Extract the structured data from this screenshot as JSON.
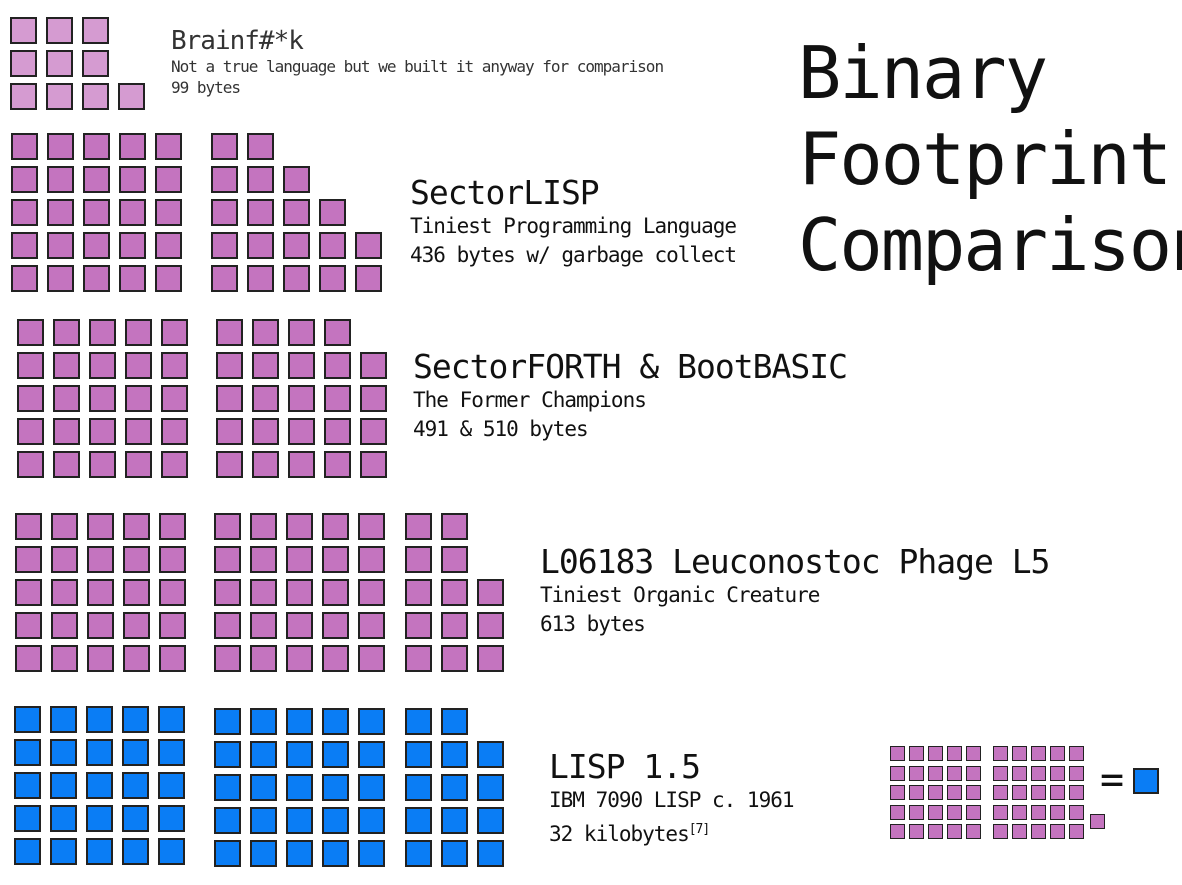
{
  "title_lines": [
    "Binary",
    "Footprint",
    "Comparison"
  ],
  "colors": {
    "purple": "#c474bf",
    "purple_light": "#d59bd1",
    "blue": "#0a7df5",
    "border": "#222222"
  },
  "entries": {
    "brainfk": {
      "name": "Brainf#*k",
      "description": "Not a true language but we built it anyway for comparison",
      "size": "99 bytes",
      "blocks": 13
    },
    "sectorlisp": {
      "name": "SectorLISP",
      "description": "Tiniest Programming Language",
      "size": "436 bytes w/ garbage collect",
      "blocks": 44
    },
    "sectorforth": {
      "name": "SectorFORTH & BootBASIC",
      "description": "The Former Champions",
      "size": "491 & 510 bytes",
      "blocks": 49
    },
    "phage": {
      "name": "L06183 Leuconostoc Phage L5",
      "description": "Tiniest Organic Creature",
      "size": "613 bytes",
      "blocks": 61
    },
    "lisp15": {
      "name": "LISP 1.5",
      "description": "IBM 7090 LISP c. 1961",
      "size": "32 kilobytes",
      "footnote": "[7]",
      "blocks": 61
    }
  },
  "legend": {
    "symbol": "=",
    "small_blocks": 51,
    "big_blocks": 1
  }
}
